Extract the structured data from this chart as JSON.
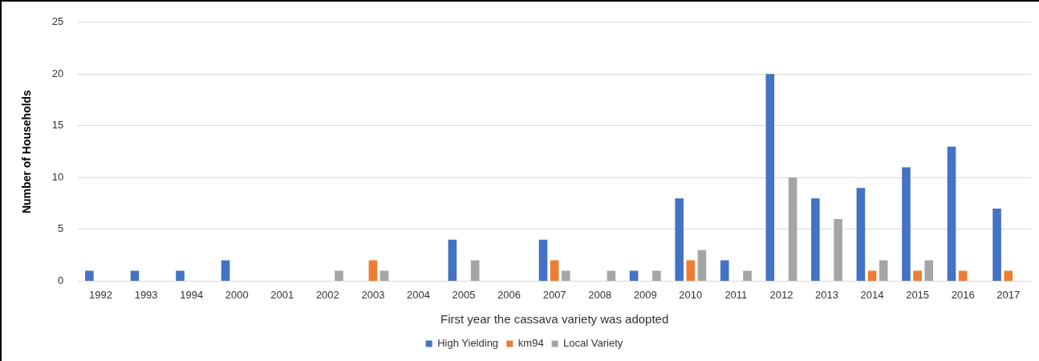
{
  "chart_data": {
    "type": "bar",
    "xlabel": "First year the cassava variety was adopted",
    "ylabel": "Number of Households",
    "categories": [
      "1992",
      "1993",
      "1994",
      "2000",
      "2001",
      "2002",
      "2003",
      "2004",
      "2005",
      "2006",
      "2007",
      "2008",
      "2009",
      "2010",
      "2011",
      "2012",
      "2013",
      "2014",
      "2015",
      "2016",
      "2017"
    ],
    "series": [
      {
        "name": "High Yielding",
        "color": "#4472c4",
        "values": [
          1,
          1,
          1,
          2,
          0,
          0,
          0,
          0,
          4,
          0,
          4,
          0,
          1,
          8,
          2,
          20,
          8,
          9,
          11,
          13,
          7
        ]
      },
      {
        "name": "km94",
        "color": "#ed7d31",
        "values": [
          0,
          0,
          0,
          0,
          0,
          0,
          2,
          0,
          0,
          0,
          2,
          0,
          0,
          2,
          0,
          0,
          0,
          1,
          1,
          1,
          1
        ]
      },
      {
        "name": "Local Variety",
        "color": "#a5a5a5",
        "values": [
          0,
          0,
          0,
          0,
          0,
          1,
          1,
          0,
          2,
          0,
          1,
          1,
          1,
          3,
          1,
          10,
          6,
          2,
          2,
          0,
          0
        ]
      }
    ],
    "ylim": [
      0,
      25
    ],
    "yticks": [
      0,
      5,
      10,
      15,
      20,
      25
    ],
    "grid": "y",
    "legend": "bottom"
  }
}
